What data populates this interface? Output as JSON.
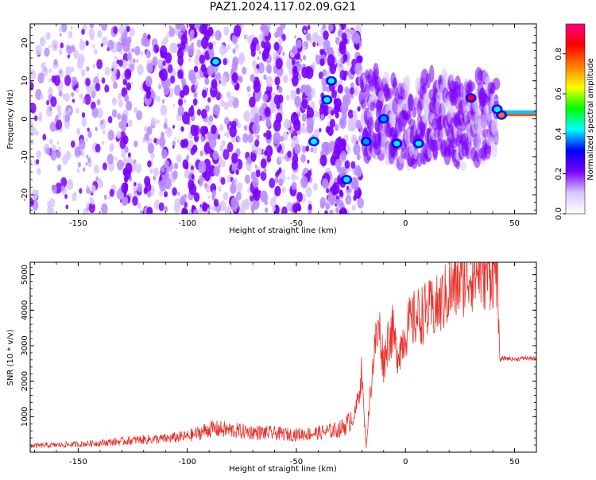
{
  "figure": {
    "title": "PAZ1.2024.117.02.09.G21"
  },
  "chart_data": [
    {
      "type": "heatmap",
      "xlabel": "Height of straight line (km)",
      "ylabel": "Frequency (Hz)",
      "xlim": [
        -172,
        60
      ],
      "ylim": [
        -25,
        25
      ],
      "xticks": [
        -150,
        -100,
        -50,
        0,
        50
      ],
      "xtick_labels": [
        "-150",
        "-100",
        "-50",
        "0",
        "50"
      ],
      "yticks": [
        20,
        10,
        0,
        -10,
        -20
      ],
      "ytick_labels": [
        "20",
        "10",
        "0",
        "-10",
        "-20"
      ],
      "colorbar": {
        "label": "Normalized spectral amplitude",
        "range": [
          0,
          0.95
        ],
        "ticks": [
          0.0,
          0.2,
          0.4,
          0.6,
          0.8
        ],
        "tick_labels": [
          "0.0",
          "0.2",
          "0.4",
          "0.6",
          "0.8"
        ],
        "colormap": [
          "#ffffff",
          "#d8c6ff",
          "#7a00ff",
          "#0000ff",
          "#00ffff",
          "#00ff00",
          "#ffff00",
          "#ff7f00",
          "#ff0000",
          "#ff0080"
        ]
      },
      "tone_line": {
        "x": [
          43,
          60
        ],
        "y": [
          1.0,
          1.0
        ]
      },
      "hot_spots": [
        {
          "x": 30,
          "y": 5.5,
          "v": 0.9
        },
        {
          "x": 44,
          "y": 1.0,
          "v": 0.8
        },
        {
          "x": -87,
          "y": 15,
          "v": 0.4
        },
        {
          "x": -36,
          "y": 5,
          "v": 0.35
        },
        {
          "x": -34,
          "y": 10,
          "v": 0.35
        },
        {
          "x": -42,
          "y": -6,
          "v": 0.35
        },
        {
          "x": -27,
          "y": -16,
          "v": 0.35
        },
        {
          "x": -4,
          "y": -6.5,
          "v": 0.35
        },
        {
          "x": 6,
          "y": -6.5,
          "v": 0.35
        },
        {
          "x": -10,
          "y": 0,
          "v": 0.3
        },
        {
          "x": -18,
          "y": -6,
          "v": 0.3
        },
        {
          "x": 42,
          "y": 2.5,
          "v": 0.4
        }
      ]
    },
    {
      "type": "line",
      "xlabel": "Height of straight line (km)",
      "ylabel": "SNR (10 * v/v)",
      "xlim": [
        -172,
        60
      ],
      "ylim": [
        0,
        5350
      ],
      "xticks": [
        -150,
        -100,
        -50,
        0,
        50
      ],
      "xtick_labels": [
        "-150",
        "-100",
        "-50",
        "0",
        "50"
      ],
      "yticks": [
        1000,
        2000,
        3000,
        4000,
        5000
      ],
      "ytick_labels": [
        "1000",
        "2000",
        "3000",
        "4000",
        "5000"
      ],
      "color": "#e8302a",
      "series": [
        {
          "x": [
            -172,
            -160,
            -150,
            -140,
            -130,
            -120,
            -110,
            -100,
            -95,
            -90,
            -85,
            -80,
            -75,
            -70,
            -65,
            -60,
            -55,
            -50,
            -45,
            -40,
            -35,
            -30,
            -26,
            -23,
            -21,
            -20,
            -19,
            -18,
            -16,
            -14,
            -12,
            -10,
            -8,
            -6,
            -4,
            -2,
            0,
            2,
            5,
            8,
            12,
            15,
            20,
            25,
            30,
            35,
            40,
            42,
            43,
            45,
            50,
            55,
            60
          ],
          "y": [
            150,
            170,
            190,
            220,
            260,
            300,
            320,
            380,
            450,
            550,
            550,
            520,
            500,
            480,
            460,
            450,
            430,
            420,
            440,
            460,
            500,
            550,
            700,
            1100,
            1800,
            2300,
            1000,
            150,
            1800,
            3000,
            3500,
            2500,
            3200,
            3400,
            2800,
            3000,
            3400,
            3600,
            3800,
            3900,
            4000,
            4100,
            4500,
            4800,
            5050,
            5100,
            5150,
            5200,
            2600,
            2650,
            2620,
            2650,
            2630
          ]
        }
      ]
    }
  ]
}
